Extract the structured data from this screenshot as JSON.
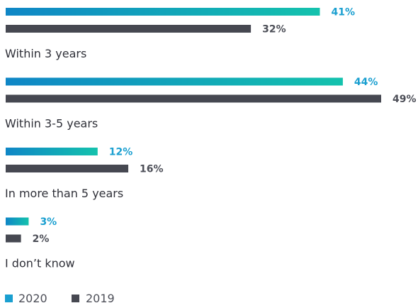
{
  "colors": {
    "series_2020_start": "#0f86c6",
    "series_2020_end": "#14c2ad",
    "series_2020_label": "#1a9fd0",
    "series_2019": "#464851"
  },
  "chart_data": {
    "type": "bar",
    "orientation": "horizontal",
    "categories": [
      "Within 3 years",
      "Within 3-5 years",
      "In more than 5 years",
      "I don’t know"
    ],
    "series": [
      {
        "name": "2020",
        "values": [
          41,
          44,
          12,
          3
        ],
        "labels": [
          "41%",
          "44%",
          "12%",
          "3%"
        ]
      },
      {
        "name": "2019",
        "values": [
          32,
          49,
          16,
          2
        ],
        "labels": [
          "32%",
          "49%",
          "16%",
          "2%"
        ]
      }
    ],
    "unit": "%",
    "xlim": [
      0,
      49
    ],
    "grid": false,
    "legend": "bottom-left"
  }
}
